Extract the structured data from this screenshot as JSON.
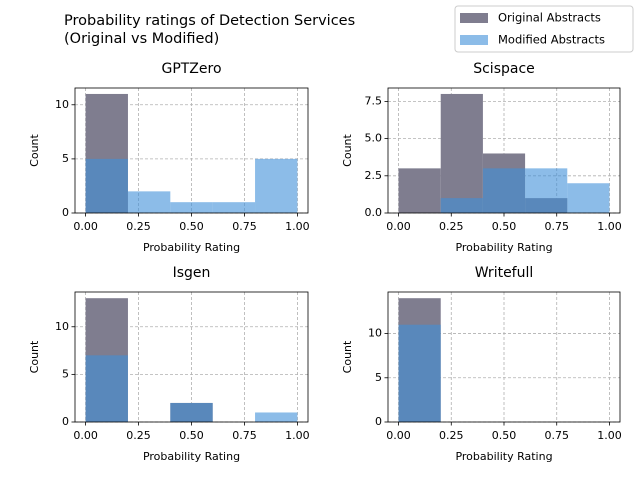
{
  "figure": {
    "title_lines": [
      "Probability ratings of Detection Services",
      "(Original vs Modified)"
    ],
    "legend": "upper right"
  },
  "chart_data": [
    {
      "type": "histogram",
      "title": "GPTZero",
      "xlabel": "Probability Rating",
      "ylabel": "Count",
      "bins": [
        0,
        0.2,
        0.4,
        0.6,
        0.8,
        1.0
      ],
      "series": [
        {
          "name": "Original Abstracts",
          "color": "#7f7d8f",
          "alpha": 1,
          "values": [
            11,
            0,
            0,
            0,
            0
          ]
        },
        {
          "name": "Modified Abstracts",
          "color": "#3f8fd8",
          "alpha": 0.6,
          "values": [
            5,
            2,
            1,
            1,
            5
          ]
        }
      ],
      "xlim": [
        -0.05,
        1.05
      ],
      "ylim": [
        0,
        11.55
      ],
      "xticks": [
        {
          "value": 0,
          "label": "0.00"
        },
        {
          "value": 0.25,
          "label": "0.25"
        },
        {
          "value": 0.5,
          "label": "0.50"
        },
        {
          "value": 0.75,
          "label": "0.75"
        },
        {
          "value": 1,
          "label": "1.00"
        }
      ],
      "yticks": [
        0,
        5,
        10
      ],
      "grid": true
    },
    {
      "type": "histogram",
      "title": "Scispace",
      "xlabel": "Probability Rating",
      "ylabel": "Count",
      "bins": [
        0,
        0.2,
        0.4,
        0.6,
        0.8,
        1.0
      ],
      "series": [
        {
          "name": "Original Abstracts",
          "color": "#7f7d8f",
          "alpha": 1,
          "values": [
            3,
            8,
            4,
            1,
            0
          ]
        },
        {
          "name": "Modified Abstracts",
          "color": "#3f8fd8",
          "alpha": 0.6,
          "values": [
            0,
            1,
            3,
            3,
            2
          ]
        }
      ],
      "xlim": [
        -0.05,
        1.05
      ],
      "ylim": [
        0,
        8.4
      ],
      "xticks": [
        {
          "value": 0,
          "label": "0.00"
        },
        {
          "value": 0.25,
          "label": "0.25"
        },
        {
          "value": 0.5,
          "label": "0.50"
        },
        {
          "value": 0.75,
          "label": "0.75"
        },
        {
          "value": 1,
          "label": "1.00"
        }
      ],
      "yticks": [
        {
          "value": 0,
          "label": "0.0"
        },
        2.5,
        {
          "value": 5,
          "label": "5.0"
        },
        7.5
      ],
      "grid": true
    },
    {
      "type": "histogram",
      "title": "Isgen",
      "xlabel": "Probability Rating",
      "ylabel": "Count",
      "bins": [
        0,
        0.2,
        0.4,
        0.6,
        0.8,
        1.0
      ],
      "series": [
        {
          "name": "Original Abstracts",
          "color": "#7f7d8f",
          "alpha": 1,
          "values": [
            13,
            0,
            2,
            0,
            0
          ]
        },
        {
          "name": "Modified Abstracts",
          "color": "#3f8fd8",
          "alpha": 0.6,
          "values": [
            7,
            0,
            2,
            0,
            1
          ]
        }
      ],
      "xlim": [
        -0.05,
        1.05
      ],
      "ylim": [
        0,
        13.65
      ],
      "xticks": [
        {
          "value": 0,
          "label": "0.00"
        },
        {
          "value": 0.25,
          "label": "0.25"
        },
        {
          "value": 0.5,
          "label": "0.50"
        },
        {
          "value": 0.75,
          "label": "0.75"
        },
        {
          "value": 1,
          "label": "1.00"
        }
      ],
      "yticks": [
        0,
        5,
        10
      ],
      "grid": true
    },
    {
      "type": "histogram",
      "title": "Writefull",
      "xlabel": "Probability Rating",
      "ylabel": "Count",
      "bins": [
        0,
        0.2,
        0.4,
        0.6,
        0.8,
        1.0
      ],
      "series": [
        {
          "name": "Original Abstracts",
          "color": "#7f7d8f",
          "alpha": 1,
          "values": [
            14,
            0,
            0,
            0,
            0
          ]
        },
        {
          "name": "Modified Abstracts",
          "color": "#3f8fd8",
          "alpha": 0.6,
          "values": [
            11,
            0,
            0,
            0,
            0
          ]
        }
      ],
      "xlim": [
        -0.05,
        1.05
      ],
      "ylim": [
        0,
        14.7
      ],
      "xticks": [
        {
          "value": 0,
          "label": "0.00"
        },
        {
          "value": 0.25,
          "label": "0.25"
        },
        {
          "value": 0.5,
          "label": "0.50"
        },
        {
          "value": 0.75,
          "label": "0.75"
        },
        {
          "value": 1,
          "label": "1.00"
        }
      ],
      "yticks": [
        0,
        5,
        10
      ],
      "grid": true
    }
  ]
}
